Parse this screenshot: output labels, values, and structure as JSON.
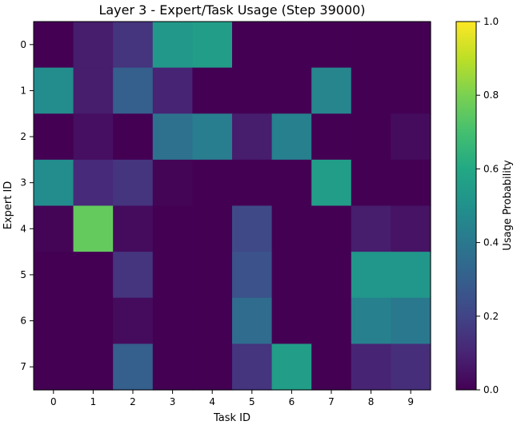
{
  "chart_data": {
    "type": "heatmap",
    "title": "Layer 3 - Expert/Task Usage (Step 39000)",
    "xlabel": "Task ID",
    "ylabel": "Expert ID",
    "x_categories": [
      "0",
      "1",
      "2",
      "3",
      "4",
      "5",
      "6",
      "7",
      "8",
      "9"
    ],
    "y_categories": [
      "0",
      "1",
      "2",
      "3",
      "4",
      "5",
      "6",
      "7"
    ],
    "values": [
      [
        0.0,
        0.08,
        0.15,
        0.53,
        0.55,
        0.0,
        0.0,
        0.0,
        0.0,
        0.0
      ],
      [
        0.48,
        0.08,
        0.3,
        0.1,
        0.0,
        0.0,
        0.0,
        0.45,
        0.0,
        0.0
      ],
      [
        0.0,
        0.04,
        0.0,
        0.37,
        0.42,
        0.08,
        0.43,
        0.0,
        0.0,
        0.03
      ],
      [
        0.48,
        0.12,
        0.15,
        0.01,
        0.0,
        0.0,
        0.0,
        0.55,
        0.0,
        0.0
      ],
      [
        0.01,
        0.76,
        0.03,
        0.0,
        0.0,
        0.22,
        0.0,
        0.0,
        0.08,
        0.05
      ],
      [
        0.0,
        0.0,
        0.15,
        0.0,
        0.0,
        0.25,
        0.0,
        0.0,
        0.52,
        0.52
      ],
      [
        0.0,
        0.0,
        0.03,
        0.0,
        0.0,
        0.35,
        0.0,
        0.0,
        0.43,
        0.4
      ],
      [
        0.0,
        0.0,
        0.3,
        0.0,
        0.0,
        0.15,
        0.55,
        0.0,
        0.1,
        0.13
      ]
    ],
    "colormap": "viridis",
    "vmin": 0.0,
    "vmax": 1.0,
    "colorbar": {
      "label": "Usage Probability",
      "ticks": [
        "0.0",
        "0.2",
        "0.4",
        "0.6",
        "0.8",
        "1.0"
      ]
    },
    "grid": false
  }
}
